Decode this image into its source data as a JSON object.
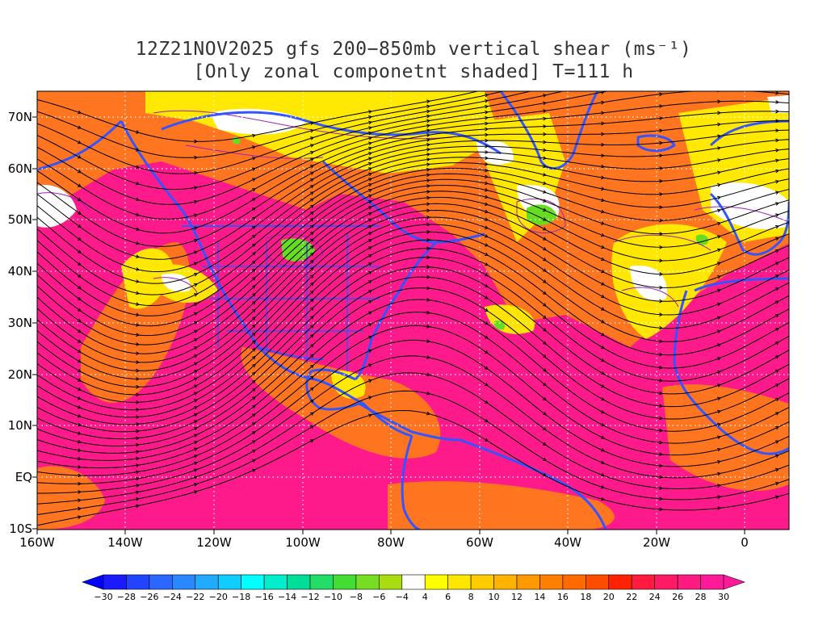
{
  "title": {
    "line1": "12Z21NOV2025 gfs 200−850mb vertical shear (ms⁻¹)",
    "line2": "[Only zonal componetnt shaded] T=111 h"
  },
  "map": {
    "lat_labels": [
      "70N",
      "60N",
      "50N",
      "40N",
      "30N",
      "20N",
      "10N",
      "EQ",
      "10S"
    ],
    "lon_labels": [
      "160W",
      "140W",
      "120W",
      "100W",
      "80W",
      "60W",
      "40W",
      "20W",
      "0"
    ],
    "colors": {
      "ocean_magenta": "#ff1a8c",
      "orange": "#ff7a1a",
      "yellow": "#ffee00",
      "green": "#66dd22",
      "coast": "#3355ff",
      "contour": "#a020c0",
      "streamline": "#000000"
    }
  },
  "colorbar": {
    "labels": [
      "−30",
      "−28",
      "−26",
      "−24",
      "−22",
      "−20",
      "−18",
      "−16",
      "−14",
      "−12",
      "−10",
      "−8",
      "−6",
      "−4",
      "4",
      "6",
      "8",
      "10",
      "12",
      "14",
      "16",
      "18",
      "20",
      "22",
      "24",
      "26",
      "28",
      "30"
    ],
    "colors": [
      "#1a1aff",
      "#2244ff",
      "#2a66ff",
      "#2a88ff",
      "#22aaff",
      "#11ccff",
      "#00ffff",
      "#00eecc",
      "#00dd99",
      "#22dd66",
      "#44dd33",
      "#77dd22",
      "#aadd11",
      "#ffffff",
      "#ffff00",
      "#ffe600",
      "#ffcc00",
      "#ffb300",
      "#ff9900",
      "#ff8000",
      "#ff6a00",
      "#ff4d00",
      "#ff2200",
      "#ff1a40",
      "#ff1a66",
      "#ff1a80",
      "#ff1a99"
    ]
  }
}
